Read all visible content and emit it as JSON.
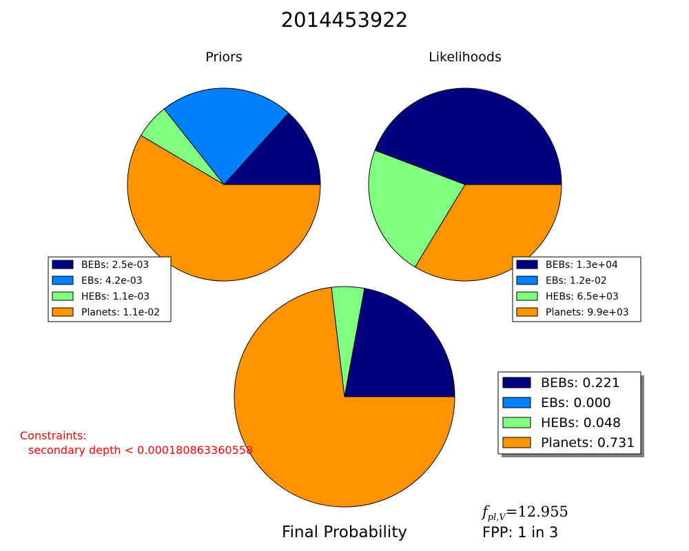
{
  "figure": {
    "title": "2014453922",
    "colors": {
      "BEBs": "#000080",
      "EBs": "#0080ff",
      "HEBs": "#80ff80",
      "Planets": "#ff9400"
    }
  },
  "chart_data": [
    {
      "type": "pie",
      "title": "Priors",
      "labels": [
        "BEBs",
        "EBs",
        "HEBs",
        "Planets"
      ],
      "values": [
        0.0025,
        0.0042,
        0.0011,
        0.011
      ],
      "legend": [
        "BEBs: 2.5e-03",
        "EBs: 4.2e-03",
        "HEBs: 1.1e-03",
        "Planets: 1.1e-02"
      ],
      "legend_position": "lower-left"
    },
    {
      "type": "pie",
      "title": "Likelihoods",
      "labels": [
        "BEBs",
        "EBs",
        "HEBs",
        "Planets"
      ],
      "values": [
        13000,
        0.012,
        6500,
        9900
      ],
      "legend": [
        "BEBs: 1.3e+04",
        "EBs: 1.2e-02",
        "HEBs: 6.5e+03",
        "Planets: 9.9e+03"
      ],
      "legend_position": "lower-right"
    },
    {
      "type": "pie",
      "title": "Final Probability",
      "labels": [
        "BEBs",
        "EBs",
        "HEBs",
        "Planets"
      ],
      "values": [
        0.221,
        0.0,
        0.048,
        0.731
      ],
      "legend": [
        "BEBs: 0.221",
        "EBs: 0.000",
        "HEBs: 0.048",
        "Planets: 0.731"
      ],
      "legend_position": "right"
    }
  ],
  "annotations": {
    "constraints_label": "Constraints:",
    "constraints_value": "secondary depth < 0.000180863360558",
    "fpl": "f",
    "fpl_sub": "pl,V",
    "fpl_value": "=12.955",
    "fpp": "FPP: 1 in 3"
  }
}
